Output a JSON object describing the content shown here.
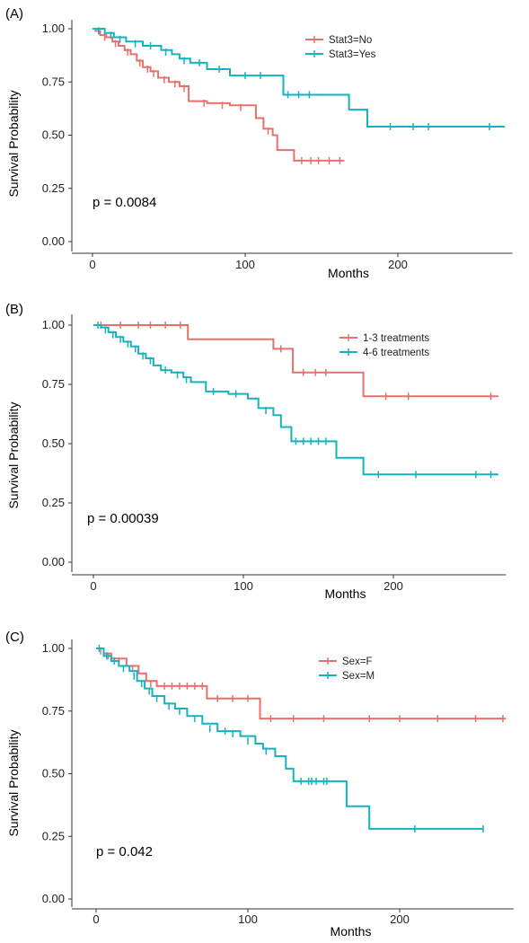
{
  "chart_data": [
    {
      "type": "line",
      "panel_label": "(A)",
      "ylabel": "Survival Probability",
      "xlabel": "Months",
      "xlim": [
        0,
        275
      ],
      "ylim": [
        0,
        1
      ],
      "xticks": [
        "0",
        "100",
        "200"
      ],
      "yticks": [
        "0.00",
        "0.25",
        "0.50",
        "0.75",
        "1.00"
      ],
      "annotation": "p = 0.0084",
      "legend_position": "top-right",
      "grid": false,
      "series": [
        {
          "name": "Stat3=No",
          "color": "#e8706c",
          "steps": [
            [
              0,
              1.0
            ],
            [
              2,
              0.99
            ],
            [
              5,
              0.97
            ],
            [
              9,
              0.96
            ],
            [
              13,
              0.94
            ],
            [
              17,
              0.92
            ],
            [
              21,
              0.9
            ],
            [
              25,
              0.88
            ],
            [
              29,
              0.85
            ],
            [
              33,
              0.82
            ],
            [
              38,
              0.8
            ],
            [
              43,
              0.77
            ],
            [
              50,
              0.75
            ],
            [
              57,
              0.73
            ],
            [
              63,
              0.66
            ],
            [
              75,
              0.65
            ],
            [
              90,
              0.64
            ],
            [
              107,
              0.58
            ],
            [
              112,
              0.53
            ],
            [
              118,
              0.5
            ],
            [
              121,
              0.43
            ],
            [
              132,
              0.38
            ],
            [
              165,
              0.38
            ]
          ],
          "censor": [
            [
              8,
              0.96
            ],
            [
              15,
              0.93
            ],
            [
              23,
              0.89
            ],
            [
              31,
              0.84
            ],
            [
              36,
              0.81
            ],
            [
              40,
              0.79
            ],
            [
              47,
              0.76
            ],
            [
              54,
              0.74
            ],
            [
              60,
              0.72
            ],
            [
              73,
              0.65
            ],
            [
              85,
              0.64
            ],
            [
              97,
              0.63
            ],
            [
              115,
              0.52
            ],
            [
              137,
              0.38
            ],
            [
              143,
              0.38
            ],
            [
              148,
              0.38
            ],
            [
              155,
              0.38
            ],
            [
              162,
              0.38
            ]
          ]
        },
        {
          "name": "Stat3=Yes",
          "color": "#14b3bd",
          "steps": [
            [
              0,
              1.0
            ],
            [
              8,
              0.98
            ],
            [
              14,
              0.96
            ],
            [
              22,
              0.94
            ],
            [
              33,
              0.92
            ],
            [
              45,
              0.9
            ],
            [
              52,
              0.88
            ],
            [
              57,
              0.86
            ],
            [
              64,
              0.84
            ],
            [
              75,
              0.81
            ],
            [
              90,
              0.78
            ],
            [
              125,
              0.69
            ],
            [
              148,
              0.69
            ],
            [
              168,
              0.62
            ],
            [
              180,
              0.54
            ],
            [
              270,
              0.54
            ]
          ],
          "censor": [
            [
              4,
              0.99
            ],
            [
              12,
              0.97
            ],
            [
              18,
              0.95
            ],
            [
              28,
              0.93
            ],
            [
              38,
              0.92
            ],
            [
              48,
              0.89
            ],
            [
              60,
              0.85
            ],
            [
              70,
              0.84
            ],
            [
              83,
              0.81
            ],
            [
              100,
              0.78
            ],
            [
              110,
              0.78
            ],
            [
              128,
              0.69
            ],
            [
              135,
              0.69
            ],
            [
              142,
              0.69
            ],
            [
              195,
              0.54
            ],
            [
              210,
              0.54
            ],
            [
              220,
              0.54
            ],
            [
              260,
              0.54
            ]
          ]
        }
      ]
    },
    {
      "type": "line",
      "panel_label": "(B)",
      "ylabel": "Survival Probability",
      "xlabel": "Months",
      "xlim": [
        0,
        275
      ],
      "ylim": [
        0,
        1
      ],
      "xticks": [
        "0",
        "100",
        "200"
      ],
      "yticks": [
        "0.00",
        "0.25",
        "0.50",
        "0.75",
        "1.00"
      ],
      "annotation": "p = 0.00039",
      "legend_position": "top-right",
      "grid": false,
      "series": [
        {
          "name": "1-3 treatments",
          "color": "#e8706c",
          "steps": [
            [
              0,
              1.0
            ],
            [
              63,
              0.94
            ],
            [
              120,
              0.9
            ],
            [
              133,
              0.8
            ],
            [
              180,
              0.7
            ],
            [
              270,
              0.7
            ]
          ],
          "censor": [
            [
              5,
              1.0
            ],
            [
              18,
              1.0
            ],
            [
              30,
              1.0
            ],
            [
              38,
              1.0
            ],
            [
              48,
              1.0
            ],
            [
              58,
              1.0
            ],
            [
              125,
              0.9
            ],
            [
              140,
              0.8
            ],
            [
              148,
              0.8
            ],
            [
              155,
              0.8
            ],
            [
              195,
              0.7
            ],
            [
              210,
              0.7
            ],
            [
              265,
              0.7
            ]
          ]
        },
        {
          "name": "4-6 treatments",
          "color": "#14b3bd",
          "steps": [
            [
              0,
              1.0
            ],
            [
              5,
              0.99
            ],
            [
              10,
              0.97
            ],
            [
              15,
              0.95
            ],
            [
              20,
              0.93
            ],
            [
              25,
              0.91
            ],
            [
              30,
              0.88
            ],
            [
              35,
              0.86
            ],
            [
              40,
              0.83
            ],
            [
              45,
              0.81
            ],
            [
              52,
              0.8
            ],
            [
              60,
              0.78
            ],
            [
              65,
              0.76
            ],
            [
              75,
              0.72
            ],
            [
              90,
              0.71
            ],
            [
              103,
              0.69
            ],
            [
              110,
              0.65
            ],
            [
              120,
              0.62
            ],
            [
              125,
              0.57
            ],
            [
              132,
              0.51
            ],
            [
              162,
              0.44
            ],
            [
              180,
              0.37
            ],
            [
              270,
              0.37
            ]
          ],
          "censor": [
            [
              3,
              1.0
            ],
            [
              8,
              0.98
            ],
            [
              13,
              0.96
            ],
            [
              18,
              0.94
            ],
            [
              23,
              0.92
            ],
            [
              28,
              0.9
            ],
            [
              33,
              0.87
            ],
            [
              38,
              0.85
            ],
            [
              48,
              0.81
            ],
            [
              56,
              0.79
            ],
            [
              62,
              0.77
            ],
            [
              80,
              0.72
            ],
            [
              95,
              0.71
            ],
            [
              115,
              0.64
            ],
            [
              135,
              0.51
            ],
            [
              140,
              0.51
            ],
            [
              145,
              0.51
            ],
            [
              150,
              0.51
            ],
            [
              155,
              0.51
            ],
            [
              190,
              0.37
            ],
            [
              215,
              0.37
            ],
            [
              255,
              0.37
            ],
            [
              265,
              0.37
            ]
          ]
        }
      ]
    },
    {
      "type": "line",
      "panel_label": "(C)",
      "ylabel": "Survival Probability",
      "xlabel": "Months",
      "xlim": [
        0,
        275
      ],
      "ylim": [
        0,
        1
      ],
      "xticks": [
        "0",
        "100",
        "200"
      ],
      "yticks": [
        "0.00",
        "0.25",
        "0.50",
        "0.75",
        "1.00"
      ],
      "annotation": "p = 0.042",
      "legend_position": "top-right",
      "grid": false,
      "series": [
        {
          "name": "Sex=F",
          "color": "#e8706c",
          "steps": [
            [
              0,
              1.0
            ],
            [
              5,
              0.98
            ],
            [
              10,
              0.96
            ],
            [
              20,
              0.93
            ],
            [
              28,
              0.9
            ],
            [
              33,
              0.87
            ],
            [
              40,
              0.85
            ],
            [
              73,
              0.8
            ],
            [
              108,
              0.72
            ],
            [
              270,
              0.72
            ]
          ],
          "censor": [
            [
              3,
              0.99
            ],
            [
              8,
              0.97
            ],
            [
              15,
              0.95
            ],
            [
              24,
              0.92
            ],
            [
              36,
              0.86
            ],
            [
              45,
              0.85
            ],
            [
              50,
              0.85
            ],
            [
              55,
              0.85
            ],
            [
              60,
              0.85
            ],
            [
              65,
              0.85
            ],
            [
              70,
              0.85
            ],
            [
              80,
              0.8
            ],
            [
              90,
              0.8
            ],
            [
              100,
              0.8
            ],
            [
              115,
              0.72
            ],
            [
              130,
              0.72
            ],
            [
              150,
              0.72
            ],
            [
              180,
              0.72
            ],
            [
              200,
              0.72
            ],
            [
              225,
              0.72
            ],
            [
              250,
              0.72
            ],
            [
              268,
              0.72
            ]
          ]
        },
        {
          "name": "Sex=M",
          "color": "#14b3bd",
          "steps": [
            [
              0,
              1.0
            ],
            [
              5,
              0.97
            ],
            [
              10,
              0.95
            ],
            [
              15,
              0.93
            ],
            [
              22,
              0.91
            ],
            [
              27,
              0.87
            ],
            [
              32,
              0.84
            ],
            [
              37,
              0.81
            ],
            [
              45,
              0.78
            ],
            [
              52,
              0.76
            ],
            [
              60,
              0.73
            ],
            [
              70,
              0.7
            ],
            [
              80,
              0.67
            ],
            [
              95,
              0.65
            ],
            [
              105,
              0.62
            ],
            [
              110,
              0.6
            ],
            [
              118,
              0.57
            ],
            [
              125,
              0.52
            ],
            [
              130,
              0.47
            ],
            [
              165,
              0.37
            ],
            [
              180,
              0.28
            ],
            [
              255,
              0.28
            ]
          ],
          "censor": [
            [
              2,
              1.0
            ],
            [
              7,
              0.97
            ],
            [
              12,
              0.95
            ],
            [
              18,
              0.92
            ],
            [
              25,
              0.89
            ],
            [
              30,
              0.86
            ],
            [
              35,
              0.83
            ],
            [
              40,
              0.8
            ],
            [
              48,
              0.77
            ],
            [
              55,
              0.75
            ],
            [
              65,
              0.72
            ],
            [
              75,
              0.68
            ],
            [
              85,
              0.67
            ],
            [
              90,
              0.66
            ],
            [
              100,
              0.63
            ],
            [
              112,
              0.59
            ],
            [
              135,
              0.47
            ],
            [
              140,
              0.47
            ],
            [
              142,
              0.47
            ],
            [
              145,
              0.47
            ],
            [
              150,
              0.47
            ],
            [
              152,
              0.47
            ],
            [
              210,
              0.28
            ],
            [
              255,
              0.28
            ]
          ]
        }
      ]
    }
  ]
}
